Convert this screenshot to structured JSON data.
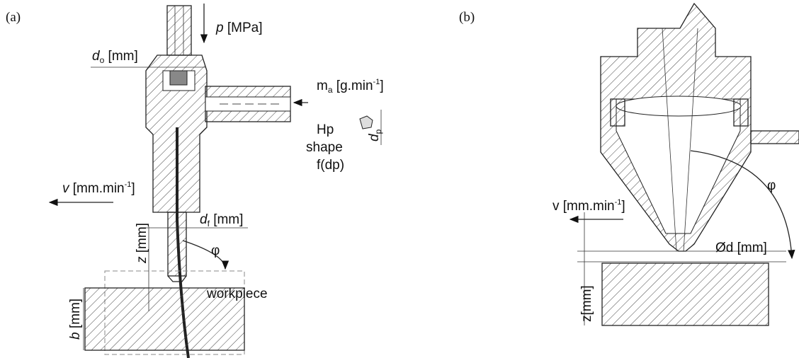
{
  "panel_a": {
    "label": "(a)",
    "pressure": {
      "symbol": "p",
      "unit": "[MPa]"
    },
    "orifice": {
      "symbol": "d",
      "sub": "o",
      "unit": "[mm]"
    },
    "abrasive_flow": {
      "symbol": "m",
      "sub": "a",
      "unit": "[g.min",
      "sup": "-1",
      "close": "]"
    },
    "particle": [
      "Hp",
      "shape",
      "f(dp)"
    ],
    "particle_size": {
      "symbol": "d",
      "sub": "p"
    },
    "speed": {
      "symbol": "v",
      "unit": "[mm.min",
      "sup": "-1",
      "close": "]"
    },
    "focus": {
      "symbol": "d",
      "sub": "f",
      "unit": "[mm]"
    },
    "standoff": {
      "symbol": "z",
      "unit": "[mm]"
    },
    "angle": "φ",
    "workpiece": "workpiece",
    "thickness": {
      "symbol": "b",
      "unit": "[mm]"
    }
  },
  "panel_b": {
    "label": "(b)",
    "speed": {
      "unit": "v [mm.min",
      "sup": "-1",
      "close": "]"
    },
    "angle": "φ",
    "diameter": "Ød [mm]",
    "standoff": "z[mm]"
  }
}
